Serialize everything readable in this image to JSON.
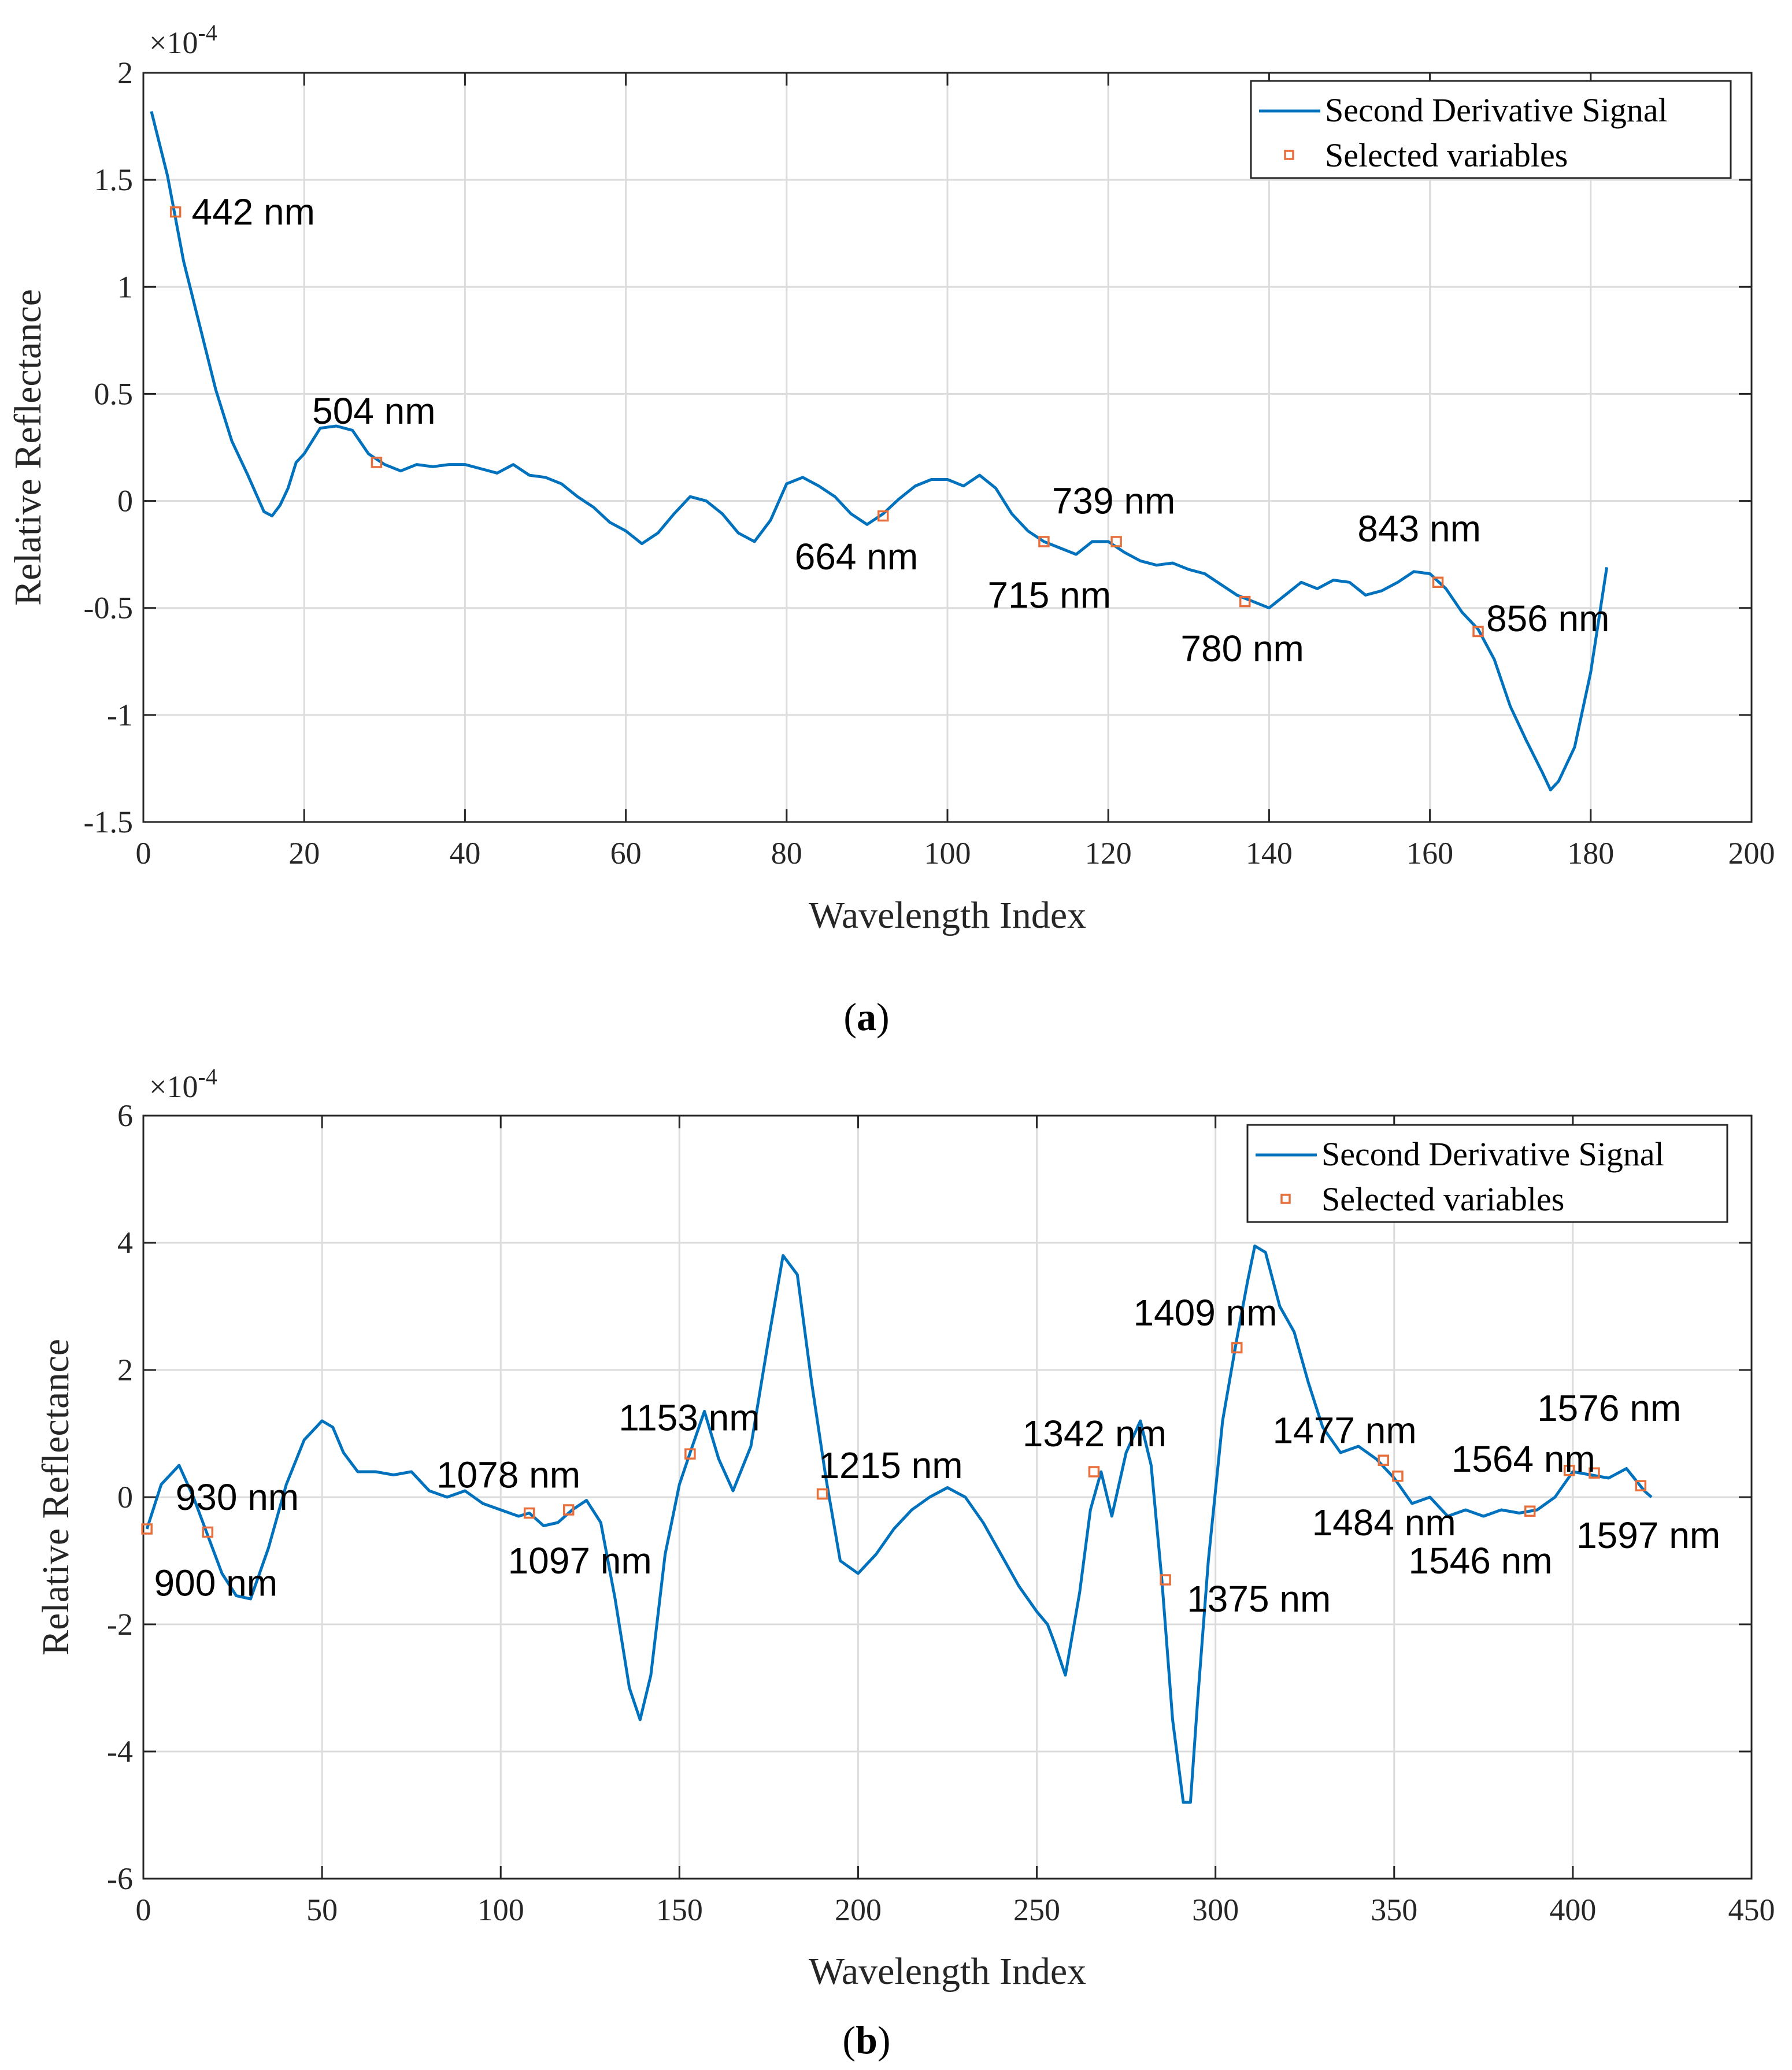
{
  "colors": {
    "signal": "#0072BD",
    "marker": "#E76F3C",
    "text": "#000000"
  },
  "chart_data": [
    {
      "panel_label": "(a)",
      "panel_letter": "a",
      "type": "line",
      "xlabel": "Wavelength Index",
      "ylabel": "Relative Reflectance",
      "y_exponent": "×10",
      "y_exponent_power": "-4",
      "xlim": [
        0,
        200
      ],
      "ylim": [
        -1.5,
        2
      ],
      "xticks": [
        0,
        20,
        40,
        60,
        80,
        100,
        120,
        140,
        160,
        180,
        200
      ],
      "yticks": [
        -1.5,
        -1,
        -0.5,
        0,
        0.5,
        1,
        1.5,
        2
      ],
      "ytick_labels": [
        "-1.5",
        "-1",
        "-0.5",
        "0",
        "0.5",
        "1",
        "1.5",
        "2"
      ],
      "grid": true,
      "legend_position": "top-right",
      "legend": [
        "Second Derivative Signal",
        "Selected variables"
      ],
      "series": [
        {
          "name": "Second Derivative Signal",
          "x": [
            1,
            3,
            5,
            7,
            9,
            11,
            13,
            15,
            16,
            17,
            18,
            19,
            20,
            22,
            24,
            26,
            28,
            30,
            32,
            34,
            36,
            38,
            40,
            42,
            44,
            46,
            48,
            50,
            52,
            54,
            56,
            58,
            60,
            62,
            64,
            66,
            68,
            70,
            72,
            74,
            76,
            78,
            80,
            82,
            84,
            86,
            88,
            90,
            92,
            94,
            96,
            98,
            100,
            102,
            104,
            106,
            108,
            110,
            112,
            114,
            116,
            118,
            120,
            122,
            124,
            126,
            128,
            130,
            132,
            134,
            136,
            138,
            140,
            142,
            144,
            146,
            148,
            150,
            152,
            154,
            156,
            158,
            160,
            162,
            164,
            166,
            168,
            170,
            172,
            174,
            175,
            176,
            178,
            180,
            182
          ],
          "values": [
            1.82,
            1.52,
            1.12,
            0.82,
            0.52,
            0.28,
            0.12,
            -0.05,
            -0.07,
            -0.02,
            0.06,
            0.18,
            0.22,
            0.34,
            0.35,
            0.33,
            0.22,
            0.17,
            0.14,
            0.17,
            0.16,
            0.17,
            0.17,
            0.15,
            0.13,
            0.17,
            0.12,
            0.11,
            0.08,
            0.02,
            -0.03,
            -0.1,
            -0.14,
            -0.2,
            -0.15,
            -0.06,
            0.02,
            0.0,
            -0.06,
            -0.15,
            -0.19,
            -0.09,
            0.08,
            0.11,
            0.07,
            0.02,
            -0.06,
            -0.11,
            -0.06,
            0.01,
            0.07,
            0.1,
            0.1,
            0.07,
            0.12,
            0.06,
            -0.06,
            -0.14,
            -0.19,
            -0.22,
            -0.25,
            -0.19,
            -0.19,
            -0.24,
            -0.28,
            -0.3,
            -0.29,
            -0.32,
            -0.34,
            -0.39,
            -0.44,
            -0.47,
            -0.5,
            -0.44,
            -0.38,
            -0.41,
            -0.37,
            -0.38,
            -0.44,
            -0.42,
            -0.38,
            -0.33,
            -0.34,
            -0.41,
            -0.52,
            -0.6,
            -0.74,
            -0.96,
            -1.12,
            -1.27,
            -1.35,
            -1.31,
            -1.15,
            -0.8,
            -0.31
          ]
        }
      ],
      "selected": [
        {
          "x": 4,
          "y": 1.35,
          "label": "442 nm",
          "anchor": "start",
          "lx": 6,
          "ly": 1.35
        },
        {
          "x": 29,
          "y": 0.18,
          "label": "504 nm",
          "anchor": "start",
          "lx": 21,
          "ly": 0.42
        },
        {
          "x": 92,
          "y": -0.07,
          "label": "664 nm",
          "anchor": "start",
          "lx": 81,
          "ly": -0.26
        },
        {
          "x": 112,
          "y": -0.19,
          "label": "715 nm",
          "anchor": "start",
          "lx": 105,
          "ly": -0.44
        },
        {
          "x": 121,
          "y": -0.19,
          "label": "739 nm",
          "anchor": "start",
          "lx": 113,
          "ly": 0.0
        },
        {
          "x": 137,
          "y": -0.47,
          "label": "780 nm",
          "anchor": "start",
          "lx": 129,
          "ly": -0.69
        },
        {
          "x": 161,
          "y": -0.38,
          "label": "843 nm",
          "anchor": "start",
          "lx": 151,
          "ly": -0.13
        },
        {
          "x": 166,
          "y": -0.61,
          "label": "856 nm",
          "anchor": "start",
          "lx": 167,
          "ly": -0.55
        }
      ]
    },
    {
      "panel_label": "(b)",
      "panel_letter": "b",
      "type": "line",
      "xlabel": "Wavelength Index",
      "ylabel": "Relative Reflectance",
      "y_exponent": "×10",
      "y_exponent_power": "-4",
      "xlim": [
        0,
        450
      ],
      "ylim": [
        -6,
        6
      ],
      "xticks": [
        0,
        50,
        100,
        150,
        200,
        250,
        300,
        350,
        400,
        450
      ],
      "yticks": [
        -6,
        -4,
        -2,
        0,
        2,
        4,
        6
      ],
      "ytick_labels": [
        "-6",
        "-4",
        "-2",
        "0",
        "2",
        "4",
        "6"
      ],
      "grid": true,
      "legend_position": "top-right",
      "legend": [
        "Second Derivative Signal",
        "Selected variables"
      ],
      "series": [
        {
          "name": "Second Derivative Signal",
          "x": [
            1,
            5,
            10,
            14,
            18,
            22,
            26,
            30,
            35,
            40,
            45,
            50,
            53,
            56,
            60,
            65,
            70,
            75,
            80,
            85,
            90,
            95,
            100,
            105,
            108,
            112,
            116,
            120,
            124,
            128,
            132,
            136,
            139,
            142,
            146,
            150,
            153,
            157,
            161,
            165,
            170,
            175,
            179,
            183,
            187,
            191,
            195,
            200,
            205,
            210,
            215,
            220,
            225,
            230,
            235,
            240,
            245,
            250,
            253,
            255,
            258,
            262,
            265,
            268,
            271,
            275,
            279,
            282,
            285,
            288,
            291,
            293,
            295,
            298,
            302,
            306,
            309,
            311,
            314,
            318,
            322,
            326,
            330,
            335,
            340,
            345,
            350,
            355,
            360,
            365,
            370,
            375,
            380,
            385,
            390,
            395,
            400,
            405,
            410,
            415,
            420,
            422
          ],
          "values": [
            -0.5,
            0.2,
            0.5,
            0.0,
            -0.6,
            -1.2,
            -1.55,
            -1.6,
            -0.8,
            0.2,
            0.9,
            1.2,
            1.1,
            0.7,
            0.4,
            0.4,
            0.35,
            0.4,
            0.1,
            0.0,
            0.1,
            -0.1,
            -0.2,
            -0.3,
            -0.25,
            -0.45,
            -0.4,
            -0.2,
            -0.05,
            -0.4,
            -1.6,
            -3.0,
            -3.5,
            -2.8,
            -0.9,
            0.2,
            0.7,
            1.35,
            0.6,
            0.1,
            0.8,
            2.5,
            3.8,
            3.5,
            1.8,
            0.3,
            -1.0,
            -1.2,
            -0.9,
            -0.5,
            -0.2,
            0.0,
            0.15,
            0.0,
            -0.4,
            -0.9,
            -1.4,
            -1.8,
            -2.0,
            -2.3,
            -2.8,
            -1.5,
            -0.2,
            0.4,
            -0.3,
            0.7,
            1.2,
            0.5,
            -1.3,
            -3.5,
            -4.8,
            -4.8,
            -3.2,
            -1.0,
            1.2,
            2.5,
            3.4,
            3.95,
            3.85,
            3.0,
            2.6,
            1.8,
            1.1,
            0.7,
            0.8,
            0.6,
            0.3,
            -0.1,
            0.0,
            -0.3,
            -0.2,
            -0.3,
            -0.2,
            -0.25,
            -0.2,
            0.0,
            0.4,
            0.35,
            0.3,
            0.45,
            0.1,
            0.0
          ]
        }
      ],
      "selected": [
        {
          "x": 1,
          "y": -0.5,
          "label": "900 nm",
          "anchor": "start",
          "lx": 3,
          "ly": -1.35
        },
        {
          "x": 18,
          "y": -0.55,
          "label": "930 nm",
          "anchor": "start",
          "lx": 9,
          "ly": 0.0
        },
        {
          "x": 108,
          "y": -0.25,
          "label": "1078 nm",
          "anchor": "start",
          "lx": 82,
          "ly": 0.35
        },
        {
          "x": 119,
          "y": -0.2,
          "label": "1097 nm",
          "anchor": "start",
          "lx": 102,
          "ly": -1.0
        },
        {
          "x": 153,
          "y": 0.68,
          "label": "1153 nm",
          "anchor": "start",
          "lx": 133,
          "ly": 1.25
        },
        {
          "x": 190,
          "y": 0.05,
          "label": "1215 nm",
          "anchor": "start",
          "lx": 189,
          "ly": 0.5
        },
        {
          "x": 266,
          "y": 0.4,
          "label": "1342 nm",
          "anchor": "start",
          "lx": 246,
          "ly": 1.0
        },
        {
          "x": 286,
          "y": -1.3,
          "label": "1375 nm",
          "anchor": "start",
          "lx": 292,
          "ly": -1.6
        },
        {
          "x": 306,
          "y": 2.35,
          "label": "1409 nm",
          "anchor": "start",
          "lx": 277,
          "ly": 2.9
        },
        {
          "x": 347,
          "y": 0.58,
          "label": "1477 nm",
          "anchor": "start",
          "lx": 316,
          "ly": 1.05
        },
        {
          "x": 351,
          "y": 0.33,
          "label": "1484 nm",
          "anchor": "start",
          "lx": 327,
          "ly": -0.4
        },
        {
          "x": 388,
          "y": -0.22,
          "label": "1546 nm",
          "anchor": "start",
          "lx": 354,
          "ly": -1.0
        },
        {
          "x": 399,
          "y": 0.42,
          "label": "1564 nm",
          "anchor": "start",
          "lx": 366,
          "ly": 0.6
        },
        {
          "x": 406,
          "y": 0.38,
          "label": "1576 nm",
          "anchor": "start",
          "lx": 390,
          "ly": 1.4
        },
        {
          "x": 419,
          "y": 0.18,
          "label": "1597 nm",
          "anchor": "start",
          "lx": 401,
          "ly": -0.6
        }
      ]
    }
  ]
}
